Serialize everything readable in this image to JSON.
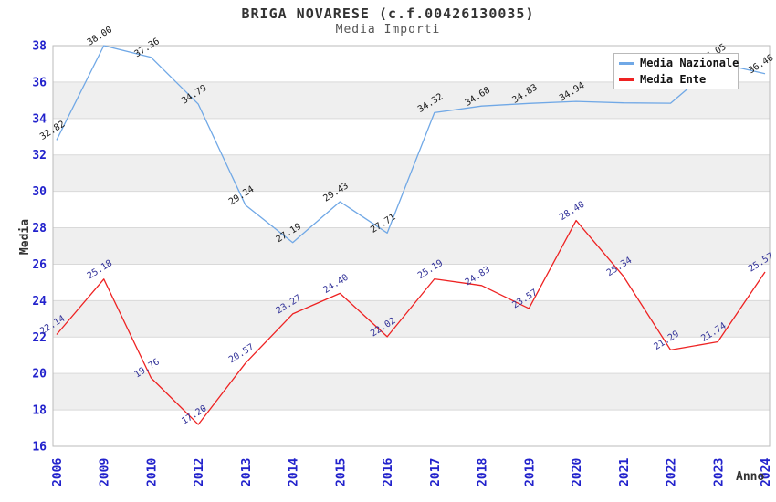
{
  "title": "BRIGA NOVARESE (c.f.00426130035)",
  "subtitle": "Media Importi",
  "y_axis_title": "Media",
  "x_axis_title": "Anno",
  "legend": {
    "items": [
      {
        "label": "Media Nazionale",
        "color": "#70a8e6"
      },
      {
        "label": "Media Ente",
        "color": "#ee2222"
      }
    ]
  },
  "colors": {
    "axis_tick_label": "#2222cc",
    "band_gray": "#efefef",
    "band_white": "#ffffff",
    "gridline": "#d9d9d9",
    "plot_border": "#bbbbbb",
    "series_blue": "#70a8e6",
    "series_red": "#ee2222",
    "point_label_blue_series": "#1a1a1a",
    "point_label_red_series": "#333399"
  },
  "chart_data": {
    "type": "line",
    "title": "BRIGA NOVARESE (c.f.00426130035)",
    "subtitle": "Media Importi",
    "xlabel": "Anno",
    "ylabel": "Media",
    "ylim": [
      16,
      38
    ],
    "y_tick_step": 2,
    "y_ticks": [
      38,
      36,
      34,
      32,
      30,
      28,
      26,
      24,
      22,
      20,
      18,
      16
    ],
    "grid": "horizontal-gridlines-with-alternating-bands",
    "legend_position": "top-right-inside",
    "categories": [
      "2006",
      "2009",
      "2010",
      "2012",
      "2013",
      "2014",
      "2015",
      "2016",
      "2017",
      "2018",
      "2019",
      "2020",
      "2021",
      "2022",
      "2023",
      "2024"
    ],
    "series": [
      {
        "name": "Media Nazionale",
        "color": "#70a8e6",
        "label_color": "#1a1a1a",
        "values": [
          32.82,
          38.0,
          37.36,
          34.79,
          29.24,
          27.19,
          29.43,
          27.71,
          34.32,
          34.68,
          34.83,
          34.94,
          34.86,
          34.84,
          37.05,
          36.46
        ],
        "point_labels": [
          "32.82",
          "38.00",
          "37.36",
          "34.79",
          "29.24",
          "27.19",
          "29.43",
          "27.71",
          "34.32",
          "34.68",
          "34.83",
          "34.94",
          "",
          "",
          "37.05",
          "36.46"
        ]
      },
      {
        "name": "Media Ente",
        "color": "#ee2222",
        "label_color": "#333399",
        "values": [
          22.14,
          25.18,
          19.76,
          17.2,
          20.57,
          23.27,
          24.4,
          22.02,
          25.19,
          24.83,
          23.57,
          28.4,
          25.34,
          21.29,
          21.74,
          25.57
        ],
        "point_labels": [
          "22.14",
          "25.18",
          "19.76",
          "17.20",
          "20.57",
          "23.27",
          "24.40",
          "22.02",
          "25.19",
          "24.83",
          "23.57",
          "28.40",
          "25.34",
          "21.29",
          "21.74",
          "25.57"
        ]
      }
    ]
  }
}
